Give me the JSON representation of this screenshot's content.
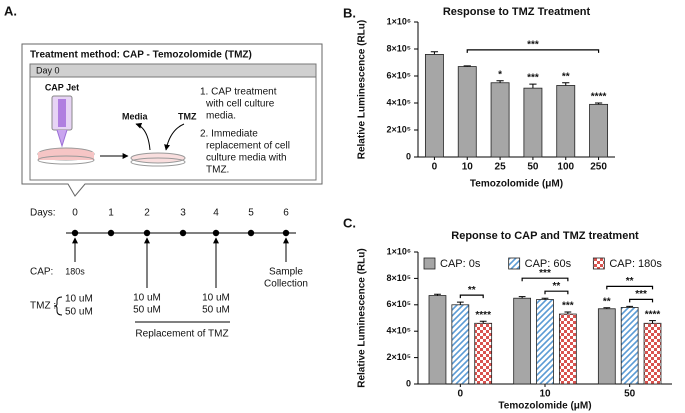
{
  "panel_labels": [
    "A.",
    "B.",
    "C."
  ],
  "diagram": {
    "title": "Treatment method: CAP - Temozolomide (TMZ)",
    "day0": "Day 0",
    "cap_jet": "CAP Jet",
    "media": "Media",
    "tmz": "TMZ",
    "step1": [
      "1. CAP treatment",
      "with cell culture",
      "media."
    ],
    "step2": [
      "2. Immediate",
      "replacement of cell",
      "culture media with",
      "TMZ."
    ],
    "days_label": "Days:",
    "days": [
      "0",
      "1",
      "2",
      "3",
      "4",
      "5",
      "6"
    ],
    "cap_label": "CAP:",
    "cap_dose": "180s",
    "tmz_label": "TMZ :",
    "tmz_doses": [
      [
        "10 uM",
        "50 uM"
      ],
      [
        "10 uM",
        "50 uM"
      ],
      [
        "10 uM",
        "50 uM"
      ]
    ],
    "sample": [
      "Sample",
      "Collection"
    ],
    "replacement": "Replacement of TMZ"
  },
  "chart_data": [
    {
      "type": "bar",
      "title": "Response to TMZ Treatment",
      "x_label": "Temozolomide (μM)",
      "y_label": "Relative Luminescence (RLu)",
      "categories": [
        "0",
        "10",
        "25",
        "50",
        "100",
        "250"
      ],
      "values": [
        760000,
        670000,
        550000,
        510000,
        530000,
        390000
      ],
      "errors": [
        20000,
        5000,
        15000,
        30000,
        20000,
        10000
      ],
      "significance": [
        null,
        null,
        "*",
        "***",
        "**",
        "****"
      ],
      "color": "#a6a6a6",
      "ylim": [
        0,
        1000000
      ],
      "yticks": [
        0,
        {
          "value": 200000,
          "label": "2×10⁵"
        },
        {
          "value": 400000,
          "label": "4×10⁵"
        },
        {
          "value": 600000,
          "label": "6×10⁵"
        },
        {
          "value": 800000,
          "label": "8×10⁵"
        },
        {
          "value": 1000000,
          "label": "1×10⁶"
        }
      ],
      "brackets": [
        {
          "text": "***",
          "from": "10",
          "to": "250"
        }
      ]
    },
    {
      "type": "bar",
      "title": "Reponse to CAP and TMZ treatment",
      "x_label": "Temozolomide (μM)",
      "y_label": "Relative Luminescence (RLu)",
      "categories": [
        "0",
        "10",
        "50"
      ],
      "series": [
        {
          "name": "CAP: 0s",
          "color": "#a6a6a6",
          "fill": "solid",
          "values": [
            670000,
            650000,
            570000
          ],
          "errors": [
            10000,
            12000,
            8000
          ],
          "significance": [
            null,
            null,
            "**"
          ]
        },
        {
          "name": "CAP: 60s",
          "color": "#5b9bd5",
          "fill": "hatch",
          "values": [
            600000,
            640000,
            580000
          ],
          "errors": [
            20000,
            10000,
            8000
          ],
          "significance": [
            null,
            null,
            null
          ]
        },
        {
          "name": "CAP: 180s",
          "color": "#d9534f",
          "fill": "check",
          "values": [
            460000,
            530000,
            460000
          ],
          "errors": [
            15000,
            15000,
            20000
          ],
          "significance": [
            "****",
            "***",
            "****"
          ]
        }
      ],
      "ylim": [
        0,
        1000000
      ],
      "yticks": [
        0,
        {
          "value": 200000,
          "label": "2×10⁵"
        },
        {
          "value": 400000,
          "label": "4×10⁵"
        },
        {
          "value": 600000,
          "label": "6×10⁵"
        },
        {
          "value": 800000,
          "label": "8×10⁵"
        },
        {
          "value": 1000000,
          "label": "1×10⁶"
        }
      ],
      "legend": "top",
      "brackets": [
        {
          "category": "0",
          "from": "CAP: 60s",
          "to": "CAP: 180s",
          "text": "**"
        },
        {
          "category": "10",
          "from": "CAP: 60s",
          "to": "CAP: 180s",
          "text": "**"
        },
        {
          "category": "10",
          "from": "CAP: 0s",
          "to": "CAP: 180s",
          "text": "***"
        },
        {
          "category": "50",
          "from": "CAP: 60s",
          "to": "CAP: 180s",
          "text": "***"
        },
        {
          "category": "50",
          "from": "CAP: 0s",
          "to": "CAP: 180s",
          "text": "**"
        }
      ]
    }
  ]
}
